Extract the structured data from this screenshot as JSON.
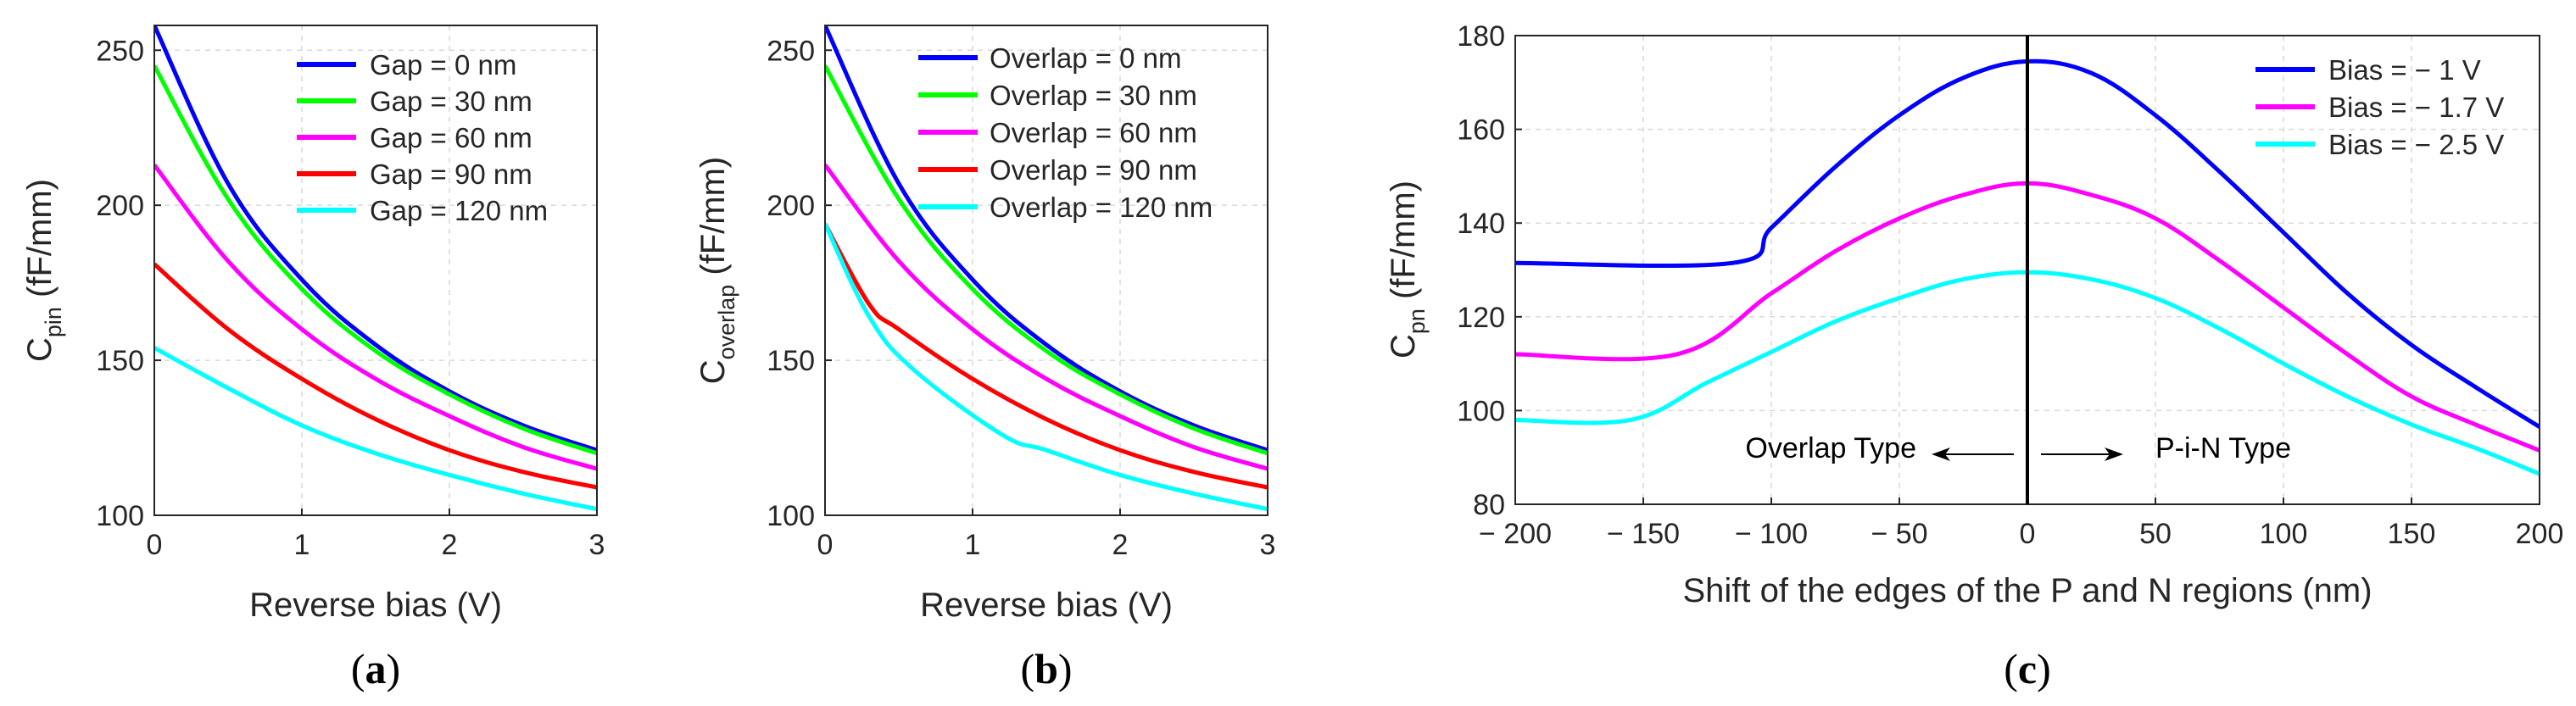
{
  "chart_data": [
    {
      "type": "line",
      "id": "a",
      "caption": "a",
      "xlabel": "Reverse bias (V)",
      "ylabel_main": "C",
      "ylabel_sub": "pin",
      "ylabel_unit": " (fF/mm)",
      "xlim": [
        0,
        3
      ],
      "ylim": [
        100,
        258
      ],
      "xticks": [
        "0",
        "1",
        "2",
        "3"
      ],
      "yticks": [
        "100",
        "150",
        "200",
        "250"
      ],
      "grid": true,
      "legend_position": "top-right",
      "series": [
        {
          "name": "Gap = 0 nm",
          "color": "#0000ff",
          "x": [
            0,
            0.5,
            1,
            1.5,
            2,
            2.5,
            3
          ],
          "values": [
            258,
            207,
            176,
            155,
            140,
            129,
            121
          ]
        },
        {
          "name": "Gap = 30 nm",
          "color": "#00ff00",
          "x": [
            0,
            0.5,
            1,
            1.5,
            2,
            2.5,
            3
          ],
          "values": [
            245,
            202,
            173,
            153,
            139,
            128,
            120
          ]
        },
        {
          "name": "Gap = 60 nm",
          "color": "#ff00ff",
          "x": [
            0,
            0.5,
            1,
            1.5,
            2,
            2.5,
            3
          ],
          "values": [
            213,
            182,
            160,
            144,
            132,
            122,
            115
          ]
        },
        {
          "name": "Gap = 90 nm",
          "color": "#ff0000",
          "x": [
            0,
            0.5,
            1,
            1.5,
            2,
            2.5,
            3
          ],
          "values": [
            181,
            160,
            144,
            131,
            121,
            114,
            109
          ]
        },
        {
          "name": "Gap = 120 nm",
          "color": "#00ffff",
          "x": [
            0,
            0.5,
            1,
            1.5,
            2,
            2.5,
            3
          ],
          "values": [
            154,
            141,
            129,
            120,
            113,
            107,
            102
          ]
        }
      ]
    },
    {
      "type": "line",
      "id": "b",
      "caption": "b",
      "xlabel": "Reverse bias (V)",
      "ylabel_main": "C",
      "ylabel_sub": "overlap",
      "ylabel_unit": " (fF/mm)",
      "xlim": [
        0,
        3
      ],
      "ylim": [
        100,
        258
      ],
      "xticks": [
        "0",
        "1",
        "2",
        "3"
      ],
      "yticks": [
        "100",
        "150",
        "200",
        "250"
      ],
      "grid": true,
      "legend_position": "top-right",
      "series": [
        {
          "name": "Overlap = 0 nm",
          "color": "#0000ff",
          "x": [
            0,
            0.5,
            1,
            1.5,
            2,
            2.5,
            3
          ],
          "values": [
            258,
            207,
            176,
            155,
            140,
            129,
            121
          ]
        },
        {
          "name": "Overlap = 30 nm",
          "color": "#00ff00",
          "x": [
            0,
            0.5,
            1,
            1.5,
            2,
            2.5,
            3
          ],
          "values": [
            245,
            202,
            173,
            153,
            139,
            128,
            120
          ]
        },
        {
          "name": "Overlap = 60 nm",
          "color": "#ff00ff",
          "x": [
            0,
            0.5,
            1,
            1.5,
            2,
            2.5,
            3
          ],
          "values": [
            213,
            182,
            160,
            144,
            132,
            122,
            115
          ]
        },
        {
          "name": "Overlap = 90 nm",
          "color": "#ff0000",
          "x": [
            0,
            0.3,
            0.5,
            1,
            1.5,
            2,
            2.5,
            3
          ],
          "values": [
            194,
            168,
            160,
            144,
            131,
            121,
            114,
            109
          ]
        },
        {
          "name": "Overlap = 120 nm",
          "color": "#00ffff",
          "x": [
            0,
            0.3,
            0.6,
            1.2,
            1.5,
            2,
            2.5,
            3
          ],
          "values": [
            194,
            164,
            147,
            126,
            121,
            113,
            107,
            102
          ]
        }
      ]
    },
    {
      "type": "line",
      "id": "c",
      "caption": "c",
      "xlabel": "Shift of the edges of the P and N regions (nm)",
      "ylabel_main": "C",
      "ylabel_sub": "pn",
      "ylabel_unit": " (fF/mm)",
      "xlim": [
        -200,
        200
      ],
      "ylim": [
        80,
        180
      ],
      "xticks": [
        "− 200",
        "− 150",
        "− 100",
        "− 50",
        "0",
        "50",
        "100",
        "150",
        "200"
      ],
      "yticks": [
        "80",
        "100",
        "120",
        "140",
        "160",
        "180"
      ],
      "grid": true,
      "legend_position": "top-right",
      "annotations": {
        "left": "Overlap Type",
        "right": "P-i-N Type",
        "vertical_line_x": 0
      },
      "series": [
        {
          "name": "Bias = − 1 V",
          "color": "#0000ff",
          "x": [
            -200,
            -115,
            -100,
            -75,
            -50,
            -25,
            0,
            25,
            50,
            75,
            100,
            125,
            150,
            175,
            200
          ],
          "values": [
            131.5,
            131.5,
            139,
            152,
            163,
            171,
            174.5,
            172,
            163,
            151,
            138,
            125,
            114,
            105,
            96.5
          ]
        },
        {
          "name": "Bias = − 1.7 V",
          "color": "#ff00ff",
          "x": [
            -200,
            -137,
            -100,
            -75,
            -50,
            -25,
            0,
            25,
            50,
            75,
            100,
            125,
            150,
            175,
            200
          ],
          "values": [
            112,
            112,
            125,
            134,
            141,
            146,
            148.5,
            146,
            141,
            132,
            122,
            112,
            103,
            97,
            91.5
          ]
        },
        {
          "name": "Bias = − 2.5 V",
          "color": "#00ffff",
          "x": [
            -200,
            -155,
            -125,
            -100,
            -75,
            -50,
            -25,
            0,
            25,
            50,
            75,
            100,
            125,
            150,
            175,
            200
          ],
          "values": [
            98,
            98,
            106,
            112.5,
            119,
            124,
            128,
            129.5,
            128,
            124,
            117.5,
            110,
            103,
            97,
            92,
            86.5
          ]
        }
      ]
    }
  ]
}
